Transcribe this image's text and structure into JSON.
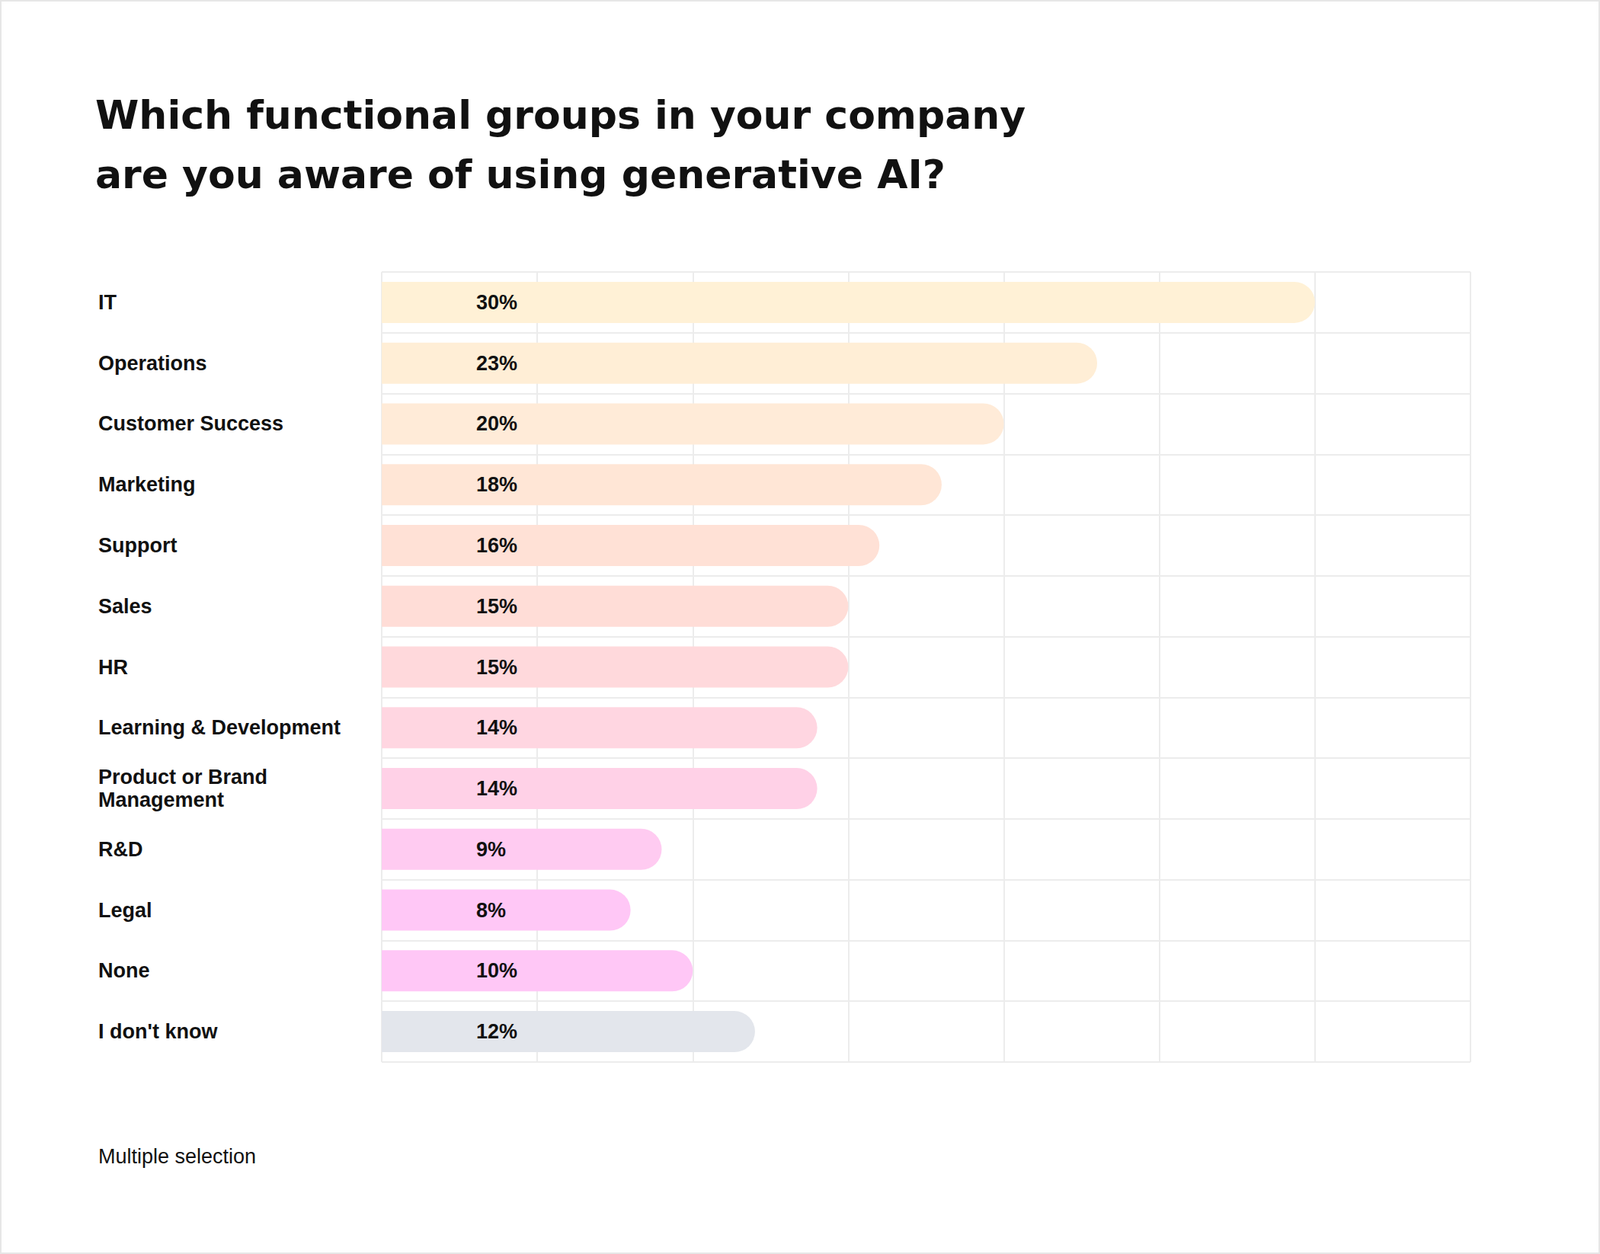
{
  "chart_data": {
    "type": "bar",
    "orientation": "horizontal",
    "title": "Which functional groups in your company\nare you aware of using generative AI?",
    "categories": [
      "IT",
      "Operations",
      "Customer Success",
      "Marketing",
      "Support",
      "Sales",
      "HR",
      "Learning & Development",
      "Product or Brand\nManagement",
      "R&D",
      "Legal",
      "None",
      "I don't know"
    ],
    "values": [
      30,
      23,
      20,
      18,
      16,
      15,
      15,
      14,
      14,
      9,
      8,
      10,
      12
    ],
    "value_labels": [
      "30%",
      "23%",
      "20%",
      "18%",
      "16%",
      "15%",
      "15%",
      "14%",
      "14%",
      "9%",
      "8%",
      "10%",
      "12%"
    ],
    "colors": [
      "#fff1d6",
      "#ffeed6",
      "#ffebd8",
      "#ffe6d6",
      "#ffe1d6",
      "#ffddd7",
      "#ffd9dc",
      "#ffd6e1",
      "#ffd1e7",
      "#ffcbf1",
      "#ffc7f6",
      "#ffc7f6",
      "#e3e6ec"
    ],
    "xlim": [
      0,
      35
    ],
    "xticks": [
      0,
      5,
      10,
      15,
      20,
      25,
      30,
      35
    ],
    "grid": true,
    "data_labels": true,
    "tick_labels": "y",
    "annotations": [
      "Multiple selection"
    ]
  }
}
